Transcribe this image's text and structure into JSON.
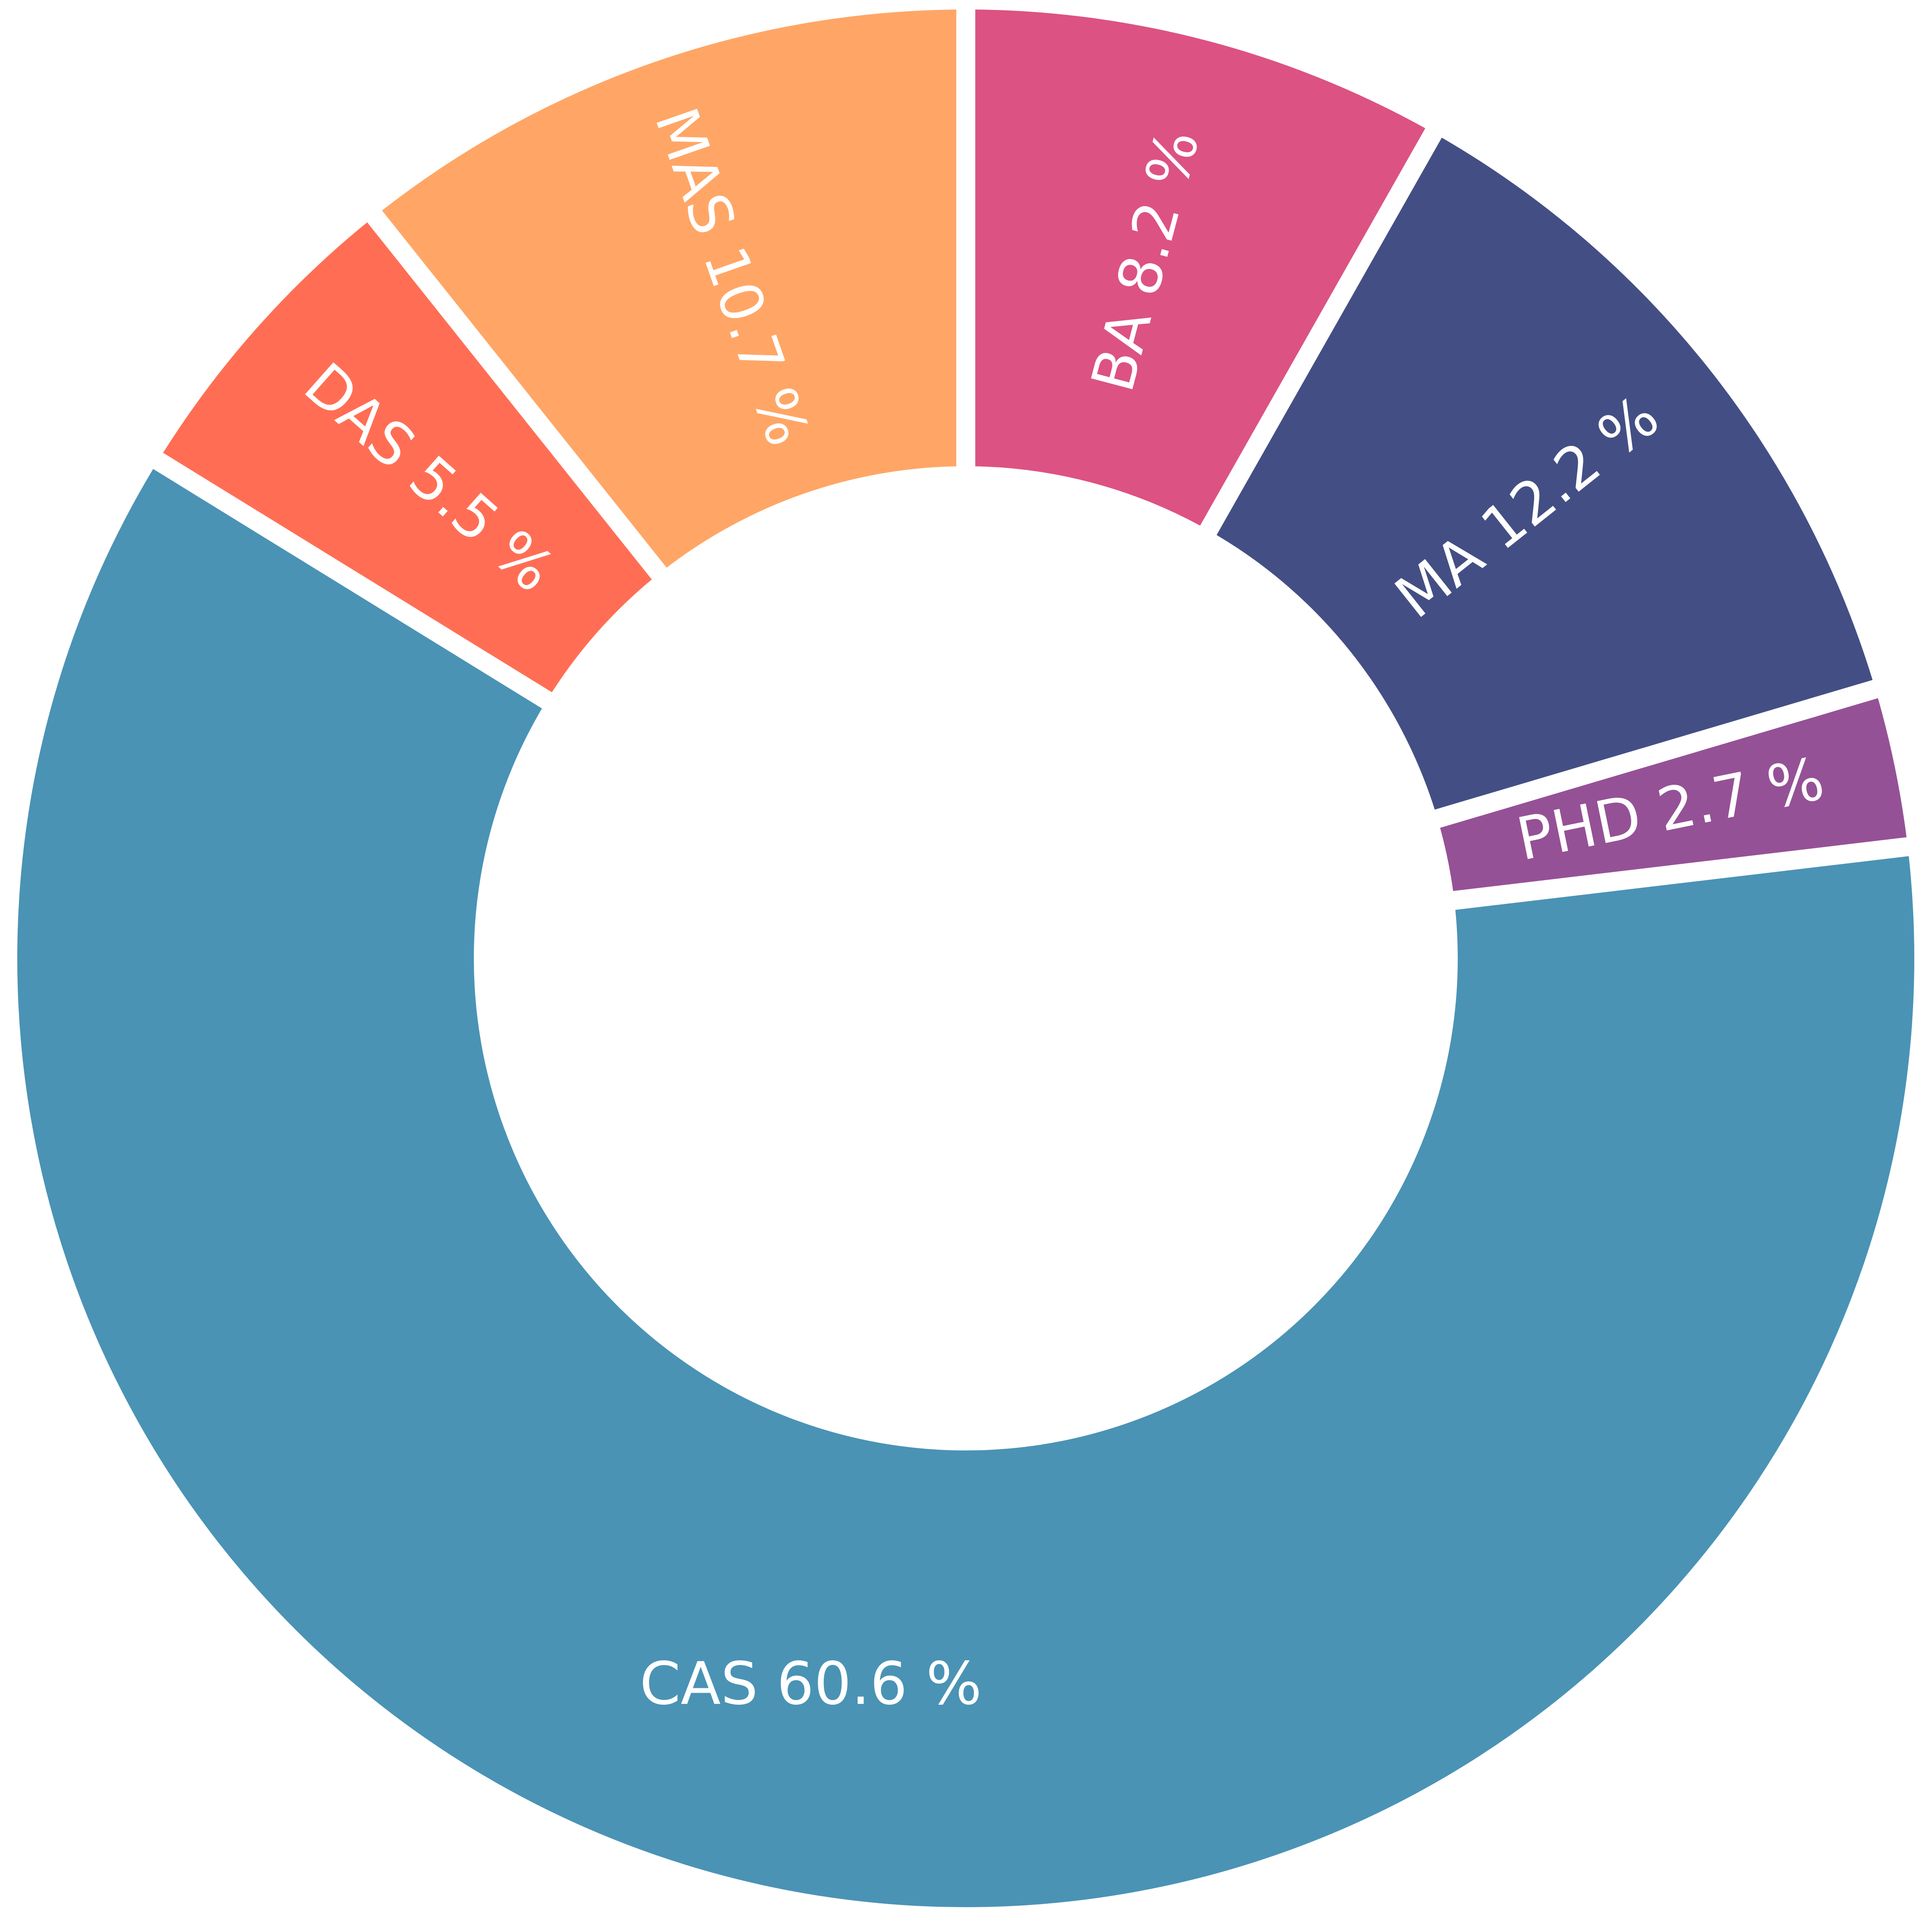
{
  "chart_data": {
    "type": "pie",
    "variant": "donut",
    "title": "",
    "slices": [
      {
        "name": "BA",
        "value": 8.2,
        "label": "BA 8.2 %",
        "color": "#dc5283"
      },
      {
        "name": "MA",
        "value": 12.2,
        "label": "MA 12.2 %",
        "color": "#434f84"
      },
      {
        "name": "PHD",
        "value": 2.7,
        "label": "PHD 2.7 %",
        "color": "#955196"
      },
      {
        "name": "CAS",
        "value": 60.6,
        "label": "CAS 60.6 %",
        "color": "#4a93b5"
      },
      {
        "name": "DAS",
        "value": 5.5,
        "label": "DAS 5.5 %",
        "color": "#ff6e54"
      },
      {
        "name": "MAS",
        "value": 10.7,
        "label": "MAS 10.7 %",
        "color": "#ffa666"
      }
    ],
    "start_position": "top",
    "direction": "clockwise",
    "legend": "none"
  }
}
